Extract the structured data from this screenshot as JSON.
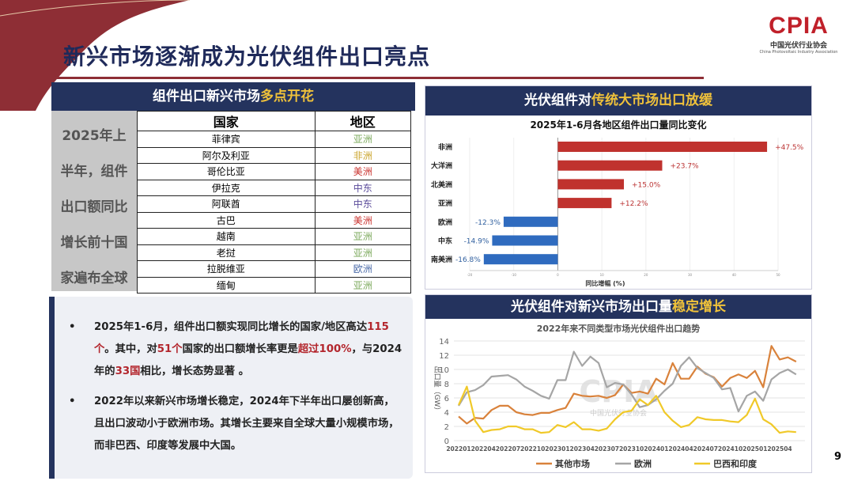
{
  "page": {
    "title": "新兴市场逐渐成为光伏组件出口亮点",
    "page_number": "9"
  },
  "logo": {
    "text": "CPIA",
    "cn": "中国光伏行业协会",
    "en": "China Photovoltaic Industry Association"
  },
  "left_panel": {
    "header_plain": "组件出口新兴市场",
    "header_highlight": "多点开花",
    "side_text": [
      "2025年上",
      "半年，组件",
      "出口额同比",
      "增长前十国",
      "家遍布全球"
    ],
    "columns": [
      "国家",
      "地区"
    ],
    "rows": [
      {
        "country": "菲律宾",
        "region": "亚洲",
        "color": "#7aa85a"
      },
      {
        "country": "阿尔及利亚",
        "region": "非洲",
        "color": "#c9a227"
      },
      {
        "country": "哥伦比亚",
        "region": "美洲",
        "color": "#c9302c"
      },
      {
        "country": "伊拉克",
        "region": "中东",
        "color": "#5a4b9a"
      },
      {
        "country": "阿联酋",
        "region": "中东",
        "color": "#5a4b9a"
      },
      {
        "country": "古巴",
        "region": "美洲",
        "color": "#c9302c"
      },
      {
        "country": "越南",
        "region": "亚洲",
        "color": "#7aa85a"
      },
      {
        "country": "老挝",
        "region": "亚洲",
        "color": "#7aa85a"
      },
      {
        "country": "拉脱维亚",
        "region": "欧洲",
        "color": "#4a6aa8"
      },
      {
        "country": "缅甸",
        "region": "亚洲",
        "color": "#7aa85a"
      }
    ]
  },
  "text_box": {
    "b1": [
      "2025年1-6月，组件出口额实现同比增长的国家/地区高达",
      "115个",
      "。其中，对",
      "51个",
      "国家的出口额增长率更是",
      "超过100%",
      "，与2024年的",
      "33国",
      "相比，增长态势显著 。"
    ],
    "b2": "2022年以来新兴市场增长稳定，2024年下半年出口屡创新高，且出口波动小于欧洲市场。其增长主要来自全球大量小规模市场，而非巴西、印度等发展中大国。"
  },
  "right_top": {
    "header_plain": "光伏组件对",
    "header_highlight": "传统大市场出口放缓"
  },
  "right_bottom": {
    "header_plain": "光伏组件对新兴市场出口量",
    "header_highlight": "稳定增长"
  },
  "chart_data": [
    {
      "type": "bar",
      "orientation": "horizontal",
      "title": "2025年1-6月各地区组件出口量同比变化",
      "xlabel": "同比增幅 (%)",
      "categories": [
        "非洲",
        "大洋洲",
        "北美洲",
        "亚洲",
        "欧洲",
        "中东",
        "南美洲"
      ],
      "values": [
        47.5,
        23.7,
        15.0,
        12.2,
        -12.3,
        -14.9,
        -16.8
      ],
      "data_labels": [
        "+47.5%",
        "+23.7%",
        "+15.0%",
        "+12.2%",
        "-12.3%",
        "-14.9%",
        "-16.8%"
      ],
      "xlim": [
        -20,
        50
      ],
      "xticks": [
        "-20",
        "-10",
        "0",
        "10",
        "20",
        "30",
        "40",
        "50"
      ],
      "grid": true,
      "colors": {
        "positive": "#c0322e",
        "negative": "#2f6bbf"
      }
    },
    {
      "type": "line",
      "title": "2022年来不同类型市场光伏组件出口趋势",
      "ylabel": "出口量（GW）",
      "ylim": [
        0,
        14
      ],
      "yticks": [
        "0",
        "2",
        "4",
        "6",
        "8",
        "10",
        "12",
        "14"
      ],
      "xtick_labels": [
        "202201",
        "202204",
        "202207",
        "202210",
        "202301",
        "202304",
        "202307",
        "202310",
        "202401",
        "202404",
        "202407",
        "202410",
        "202501",
        "202504"
      ],
      "legend_position": "bottom",
      "grid": true,
      "watermark": "CPIA 中国光伏行业协会",
      "series": [
        {
          "name": "其他市场",
          "color": "#d9823b",
          "values": [
            3.4,
            2.4,
            3.2,
            3.1,
            4.3,
            4.9,
            4.9,
            4.0,
            3.7,
            3.6,
            3.9,
            3.9,
            4.3,
            4.6,
            6.6,
            6.3,
            6.2,
            6.3,
            6.0,
            6.4,
            7.9,
            6.7,
            6.9,
            6.6,
            8.7,
            7.9,
            10.9,
            8.7,
            8.7,
            10.4,
            9.4,
            8.9,
            7.6,
            8.8,
            9.3,
            8.8,
            9.8,
            7.5,
            13.3,
            11.4,
            11.7,
            11.1
          ]
        },
        {
          "name": "欧洲",
          "color": "#a5a5a5",
          "values": [
            4.9,
            6.8,
            7.1,
            7.8,
            9.0,
            9.1,
            9.2,
            8.6,
            7.6,
            7.0,
            6.3,
            5.9,
            8.5,
            8.5,
            12.5,
            10.5,
            11.8,
            10.9,
            7.5,
            8.1,
            7.9,
            6.5,
            4.7,
            5.0,
            5.8,
            7.0,
            8.0,
            10.5,
            11.7,
            10.2,
            9.5,
            8.8,
            7.2,
            7.4,
            4.1,
            6.3,
            6.9,
            5.6,
            8.6,
            9.5,
            10.0,
            9.3
          ]
        },
        {
          "name": "巴西和印度",
          "color": "#f0c929",
          "values": [
            5.0,
            7.6,
            2.8,
            1.2,
            1.5,
            1.6,
            2.0,
            2.0,
            1.6,
            1.6,
            1.1,
            1.2,
            2.2,
            1.9,
            2.6,
            1.6,
            1.6,
            1.4,
            1.7,
            3.0,
            4.0,
            4.2,
            5.8,
            5.0,
            6.3,
            4.0,
            2.8,
            1.9,
            2.2,
            3.3,
            3.0,
            2.9,
            2.9,
            2.7,
            2.6,
            3.6,
            5.9,
            3.0,
            2.3,
            1.1,
            1.3,
            1.2
          ]
        }
      ]
    }
  ]
}
